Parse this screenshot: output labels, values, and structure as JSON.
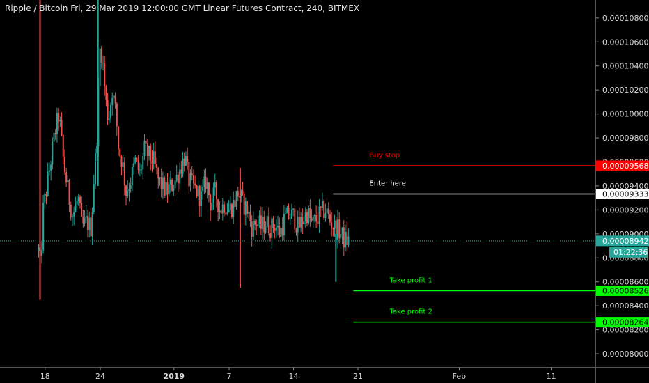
{
  "header": {
    "title": "Ripple / Bitcoin Fri, 29 Mar 2019 12:00:00 GMT Linear Futures Contract, 240, BITMEX"
  },
  "colors": {
    "background": "#000000",
    "up_candle": "#26a69a",
    "down_candle": "#ef5350",
    "buy_stop": "#ff0000",
    "entry": "#ffffff",
    "take_profit": "#00ff00",
    "last_price": "#26a69a",
    "axis_text": "#d6d6d6"
  },
  "chart_data": {
    "type": "candlestick",
    "title": "Ripple / Bitcoin Fri, 29 Mar 2019 12:00:00 GMT Linear Futures Contract, 240, BITMEX",
    "ylim": [
      7.89e-05,
      0.0001095
    ],
    "y_ticks": [
      "0.00008000",
      "0.00008200",
      "0.00008400",
      "0.00008600",
      "0.00008800",
      "0.00009000",
      "0.00009200",
      "0.00009400",
      "0.00009600",
      "0.00009800",
      "0.00010000",
      "0.00010200",
      "0.00010400",
      "0.00010600",
      "0.00010800"
    ],
    "x_ticks": [
      {
        "label": "18",
        "day": 0
      },
      {
        "label": "24",
        "day": 6
      },
      {
        "label": "2019",
        "day": 14
      },
      {
        "label": "7",
        "day": 20
      },
      {
        "label": "14",
        "day": 27
      },
      {
        "label": "21",
        "day": 34
      },
      {
        "label": "Feb",
        "day": 45
      },
      {
        "label": "11",
        "day": 55
      }
    ],
    "x_range_days": [
      -4.9,
      59.8
    ],
    "keypoints": [
      [
        -0.7,
        8.86e-05
      ],
      [
        -0.5,
        8.7e-05
      ],
      [
        -0.2,
        9.2e-05
      ],
      [
        0.5,
        9.55e-05
      ],
      [
        1.1,
        9.85e-05
      ],
      [
        1.5,
        0.0001
      ],
      [
        2.0,
        9.6e-05
      ],
      [
        2.6,
        9.3e-05
      ],
      [
        3.0,
        9.15e-05
      ],
      [
        3.6,
        9.3e-05
      ],
      [
        4.0,
        9.05e-05
      ],
      [
        4.5,
        9.1e-05
      ],
      [
        5.0,
        9.05e-05
      ],
      [
        5.3,
        9.45e-05
      ],
      [
        5.6,
        9.75e-05
      ],
      [
        6.0,
        0.000106
      ],
      [
        6.3,
        0.000104
      ],
      [
        6.6,
        0.000101
      ],
      [
        6.9,
        9.95e-05
      ],
      [
        7.3,
        0.000102
      ],
      [
        7.7,
        0.0001
      ],
      [
        8.0,
        9.7e-05
      ],
      [
        8.4,
        9.6e-05
      ],
      [
        8.8,
        9.35e-05
      ],
      [
        9.3,
        9.45e-05
      ],
      [
        9.8,
        9.6e-05
      ],
      [
        10.3,
        9.5e-05
      ],
      [
        10.8,
        9.7e-05
      ],
      [
        11.3,
        9.65e-05
      ],
      [
        11.8,
        9.6e-05
      ],
      [
        12.3,
        9.45e-05
      ],
      [
        12.7,
        9.4e-05
      ],
      [
        13.2,
        9.35e-05
      ],
      [
        13.7,
        9.4e-05
      ],
      [
        14.2,
        9.45e-05
      ],
      [
        14.7,
        9.55e-05
      ],
      [
        15.2,
        9.65e-05
      ],
      [
        15.6,
        9.45e-05
      ],
      [
        16.0,
        9.4e-05
      ],
      [
        16.5,
        9.35e-05
      ],
      [
        17.0,
        9.3e-05
      ],
      [
        17.5,
        9.45e-05
      ],
      [
        18.0,
        9.25e-05
      ],
      [
        18.5,
        9.35e-05
      ],
      [
        19.0,
        9.2e-05
      ],
      [
        19.5,
        9.25e-05
      ],
      [
        20.0,
        9.2e-05
      ],
      [
        20.5,
        9.25e-05
      ],
      [
        21.0,
        9.35e-05
      ],
      [
        21.5,
        9.25e-05
      ],
      [
        22.0,
        9.2e-05
      ],
      [
        22.5,
        9.05e-05
      ],
      [
        23.0,
        9.1e-05
      ],
      [
        23.5,
        9.05e-05
      ],
      [
        24.0,
        9.1e-05
      ],
      [
        24.5,
        9.05e-05
      ],
      [
        25.0,
        9.08e-05
      ],
      [
        25.5,
        9e-05
      ],
      [
        26.0,
        9.12e-05
      ],
      [
        26.5,
        9.15e-05
      ],
      [
        27.0,
        9.15e-05
      ],
      [
        27.5,
        9.05e-05
      ],
      [
        28.0,
        9.12e-05
      ],
      [
        28.5,
        9.18e-05
      ],
      [
        29.0,
        9.08e-05
      ],
      [
        29.5,
        9.12e-05
      ],
      [
        30.0,
        9.18e-05
      ],
      [
        30.5,
        9.2e-05
      ],
      [
        31.0,
        9.1e-05
      ],
      [
        31.5,
        9.05e-05
      ],
      [
        32.0,
        9.02e-05
      ],
      [
        32.5,
        8.95e-05
      ],
      [
        33.0,
        8.94e-05
      ]
    ],
    "spikes": [
      {
        "day": -0.55,
        "low": 8.45e-05,
        "high": 0.0001095
      },
      {
        "day": 5.75,
        "low": 9.4e-05,
        "high": 0.0001095
      },
      {
        "day": 21.2,
        "low": 8.55e-05,
        "high": 9.55e-05
      },
      {
        "day": 31.6,
        "low": 8.6e-05,
        "high": 9e-05
      }
    ],
    "levels": [
      {
        "name": "Buy stop",
        "price": "0.00009568",
        "value": 9.568e-05,
        "color": "#ff0000",
        "text_color": "#ff0000",
        "start_day": 31.3
      },
      {
        "name": "Enter here",
        "price": "0.00009333",
        "value": 9.333e-05,
        "color": "#ffffff",
        "text_color": "#ffffff",
        "start_day": 31.3
      },
      {
        "name": "Take profit 1",
        "price": "0.00008526",
        "value": 8.526e-05,
        "color": "#00ff00",
        "text_color": "#000000",
        "start_day": 33.5
      },
      {
        "name": "Take profit 2",
        "price": "0.00008264",
        "value": 8.264e-05,
        "color": "#00ff00",
        "text_color": "#000000",
        "start_day": 33.5
      }
    ],
    "last_price": {
      "price": "0.00008942",
      "value": 8.942e-05,
      "countdown": "01:22:36",
      "color": "#26a69a"
    }
  }
}
